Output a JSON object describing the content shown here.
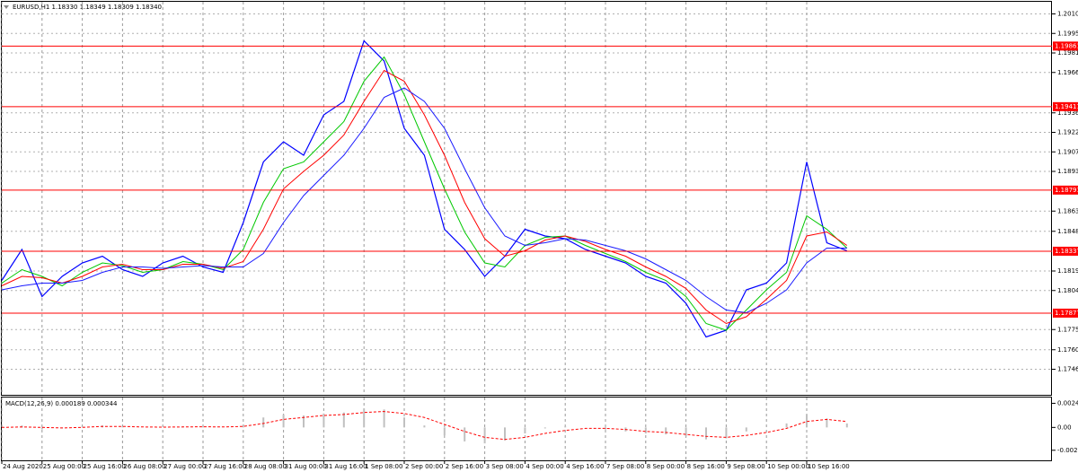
{
  "chart_data": [
    {
      "type": "line",
      "title": "EURUSD,H1  1.18330 1.18349 1.18309 1.18340",
      "categories": [
        "24 Aug 2020",
        null,
        "25 Aug 00:00",
        null,
        "25 Aug 16:00",
        null,
        "26 Aug 08:00",
        null,
        "27 Aug 00:00",
        null,
        "27 Aug 16:00",
        null,
        "28 Aug 08:00",
        null,
        "31 Aug 00:00",
        null,
        "31 Aug 16:00",
        null,
        "1 Sep 08:00",
        null,
        "2 Sep 00:00",
        null,
        "2 Sep 16:00",
        null,
        "3 Sep 08:00",
        null,
        "4 Sep 00:00",
        null,
        "4 Sep 16:00",
        null,
        "7 Sep 08:00",
        null,
        "8 Sep 00:00",
        null,
        "8 Sep 16:00",
        null,
        "9 Sep 08:00",
        null,
        "10 Sep 00:00",
        null,
        "10 Sep 16:00",
        null,
        null
      ],
      "series": [
        {
          "color": "#0000ff",
          "values": [
            1.1812,
            1.1835,
            1.18,
            1.1815,
            1.1825,
            1.183,
            1.182,
            1.1815,
            1.1825,
            1.183,
            1.1822,
            1.1818,
            1.1855,
            1.19,
            1.1915,
            1.1905,
            1.1935,
            1.1945,
            1.199,
            1.1975,
            1.1925,
            1.1905,
            1.185,
            1.1835,
            1.1815,
            1.183,
            1.185,
            1.1845,
            1.1843,
            1.1835,
            1.183,
            1.1825,
            1.1815,
            1.181,
            1.1795,
            1.177,
            1.1775,
            1.1805,
            1.181,
            1.1825,
            1.19,
            1.184,
            1.1834
          ]
        },
        {
          "color": "#00c800",
          "values": [
            1.181,
            1.182,
            1.1815,
            1.1808,
            1.1818,
            1.1825,
            1.1823,
            1.1818,
            1.182,
            1.1826,
            1.1824,
            1.182,
            1.1835,
            1.187,
            1.1895,
            1.19,
            1.1915,
            1.193,
            1.196,
            1.1978,
            1.195,
            1.1915,
            1.188,
            1.1848,
            1.1825,
            1.1822,
            1.1838,
            1.1844,
            1.1845,
            1.1838,
            1.1832,
            1.1826,
            1.1818,
            1.1812,
            1.18,
            1.178,
            1.1775,
            1.179,
            1.1805,
            1.1818,
            1.186,
            1.185,
            1.1836
          ]
        },
        {
          "color": "#ff0000",
          "values": [
            1.1808,
            1.1815,
            1.1814,
            1.181,
            1.1815,
            1.1822,
            1.1824,
            1.182,
            1.182,
            1.1824,
            1.1824,
            1.1821,
            1.1826,
            1.185,
            1.188,
            1.1893,
            1.1905,
            1.192,
            1.1945,
            1.1968,
            1.196,
            1.1935,
            1.1905,
            1.187,
            1.1843,
            1.183,
            1.1834,
            1.1842,
            1.1845,
            1.1841,
            1.1835,
            1.183,
            1.1822,
            1.1815,
            1.1806,
            1.179,
            1.178,
            1.1785,
            1.1798,
            1.1812,
            1.1845,
            1.1848,
            1.1838
          ]
        },
        {
          "color": "#1a1aff",
          "values": [
            1.1805,
            1.1808,
            1.181,
            1.181,
            1.1812,
            1.1818,
            1.1822,
            1.1822,
            1.1821,
            1.1822,
            1.1823,
            1.1822,
            1.1822,
            1.1832,
            1.1855,
            1.1875,
            1.189,
            1.1905,
            1.1925,
            1.1948,
            1.1955,
            1.1945,
            1.1925,
            1.1895,
            1.1866,
            1.1845,
            1.1838,
            1.184,
            1.1843,
            1.1842,
            1.1838,
            1.1834,
            1.1828,
            1.182,
            1.1812,
            1.18,
            1.179,
            1.1788,
            1.1795,
            1.1805,
            1.1825,
            1.1836,
            1.1836
          ]
        }
      ],
      "ylim": [
        1.1727,
        1.2019
      ],
      "yticks": [
        {
          "value": 1.201,
          "label": "1.20100"
        },
        1.19955,
        {
          "value": 1.1981,
          "label": "1.19810"
        },
        1.19665,
        1.19365,
        {
          "value": 1.1922,
          "label": "1.19220"
        },
        1.19075,
        {
          "value": 1.1893,
          "label": "1.18930"
        },
        1.18635,
        1.18485,
        {
          "value": 1.1819,
          "label": "1.18190"
        },
        1.18045,
        1.17755,
        1.17605,
        {
          "value": 1.1746,
          "label": "1.17460"
        }
      ],
      "hlines": [
        1.19861,
        1.19411,
        1.18791,
        1.18337,
        1.17877
      ],
      "hline_color": "#ff0000",
      "grid": true
    },
    {
      "type": "bar",
      "title": "MACD(12,26,9) 0.000189 0.000344",
      "values": [
        0,
        0.0002,
        -0.0002,
        -0.0001,
        0.0001,
        0.0002,
        0.0001,
        0,
        0,
        0.0001,
        0.0001,
        0,
        0.0003,
        0.001,
        0.0013,
        0.0012,
        0.0014,
        0.0015,
        0.0019,
        0.0018,
        0.001,
        0.0002,
        -0.0008,
        -0.0014,
        -0.0016,
        -0.0013,
        -0.0006,
        -0.0001,
        0.0001,
        0,
        -0.0002,
        -0.0004,
        -0.0006,
        -0.0007,
        -0.0009,
        -0.0012,
        -0.0011,
        -0.0004,
        0,
        0.0004,
        0.0013,
        0.0009,
        0.0004
      ],
      "color": "#c0c0c0",
      "series": [
        {
          "color": "#ff0000",
          "line_style": "dashed",
          "values": [
            0,
            5e-05,
            0,
            -5e-05,
            0,
            0.0001,
            0.0001,
            5e-05,
            3e-05,
            5e-05,
            7e-05,
            5e-05,
            0.0001,
            0.0004,
            0.0008,
            0.001,
            0.0012,
            0.0013,
            0.0015,
            0.0016,
            0.0014,
            0.001,
            0.0003,
            -0.0004,
            -0.001,
            -0.0012,
            -0.001,
            -0.0006,
            -0.0003,
            -0.0001,
            -0.0001,
            -0.0002,
            -0.0004,
            -0.0005,
            -0.0007,
            -0.0009,
            -0.001,
            -0.0008,
            -0.0005,
            -0.0001,
            0.0006,
            0.0008,
            0.0006
          ]
        }
      ],
      "ylim": [
        -0.0033,
        0.003
      ],
      "yticks": [
        0.00242,
        {
          "value": 0,
          "label": "0.00"
        },
        -0.00229
      ]
    }
  ]
}
